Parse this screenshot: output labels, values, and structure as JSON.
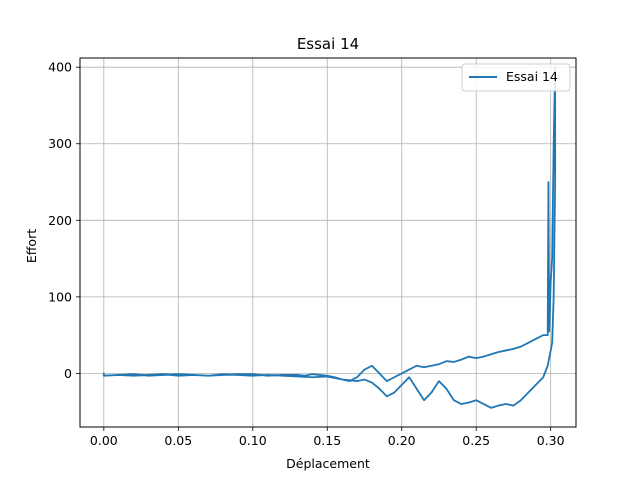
{
  "chart_data": {
    "type": "line",
    "title": "Essai 14",
    "xlabel": "Déplacement",
    "ylabel": "Effort",
    "xlim": [
      -0.016,
      0.317
    ],
    "ylim": [
      -70,
      412
    ],
    "xticks": [
      0.0,
      0.05,
      0.1,
      0.15,
      0.2,
      0.25,
      0.3
    ],
    "xtick_labels": [
      "0.00",
      "0.05",
      "0.10",
      "0.15",
      "0.20",
      "0.25",
      "0.30"
    ],
    "yticks": [
      0,
      100,
      200,
      300,
      400
    ],
    "ytick_labels": [
      "0",
      "100",
      "200",
      "300",
      "400"
    ],
    "grid": true,
    "legend_position": "top-right",
    "series": [
      {
        "name": "Essai 14",
        "color": "#1f77b4",
        "x": [
          0.0,
          0.0,
          0.01,
          0.02,
          0.03,
          0.04,
          0.05,
          0.06,
          0.07,
          0.08,
          0.09,
          0.1,
          0.11,
          0.12,
          0.13,
          0.14,
          0.15,
          0.16,
          0.17,
          0.175,
          0.18,
          0.185,
          0.19,
          0.195,
          0.2,
          0.205,
          0.21,
          0.215,
          0.22,
          0.225,
          0.23,
          0.235,
          0.24,
          0.245,
          0.25,
          0.255,
          0.26,
          0.265,
          0.27,
          0.275,
          0.28,
          0.285,
          0.29,
          0.295,
          0.298,
          0.3,
          0.301,
          0.302,
          0.303,
          0.303,
          0.302,
          0.301,
          0.3,
          0.299,
          0.2985,
          0.298,
          0.295,
          0.29,
          0.285,
          0.28,
          0.275,
          0.27,
          0.265,
          0.26,
          0.255,
          0.25,
          0.245,
          0.24,
          0.235,
          0.23,
          0.225,
          0.22,
          0.215,
          0.21,
          0.205,
          0.2,
          0.195,
          0.19,
          0.185,
          0.18,
          0.175,
          0.17,
          0.165,
          0.16,
          0.155,
          0.15,
          0.145,
          0.14,
          0.135,
          0.13,
          0.12,
          0.11,
          0.1,
          0.09,
          0.08,
          0.07,
          0.06,
          0.05,
          0.04,
          0.03,
          0.02,
          0.01,
          0.0
        ],
        "y": [
          0,
          -3,
          -2,
          -1,
          -3,
          -2,
          -1,
          -2,
          -3,
          -1,
          -2,
          -3,
          -2,
          -3,
          -4,
          -5,
          -4,
          -8,
          -10,
          -8,
          -12,
          -20,
          -30,
          -25,
          -15,
          -5,
          -20,
          -35,
          -25,
          -10,
          -20,
          -35,
          -40,
          -38,
          -35,
          -40,
          -45,
          -42,
          -40,
          -42,
          -35,
          -25,
          -15,
          -5,
          10,
          30,
          40,
          100,
          250,
          400,
          300,
          150,
          120,
          55,
          250,
          50,
          50,
          45,
          40,
          35,
          32,
          30,
          28,
          25,
          22,
          20,
          22,
          18,
          15,
          16,
          12,
          10,
          8,
          10,
          5,
          0,
          -5,
          -10,
          0,
          10,
          5,
          -5,
          -10,
          -8,
          -5,
          -3,
          -2,
          -1,
          -3,
          -2,
          -2,
          -3,
          -1,
          -1,
          -2,
          -3,
          -2,
          -3,
          -1,
          -2,
          -3,
          -2,
          -3
        ]
      }
    ]
  }
}
